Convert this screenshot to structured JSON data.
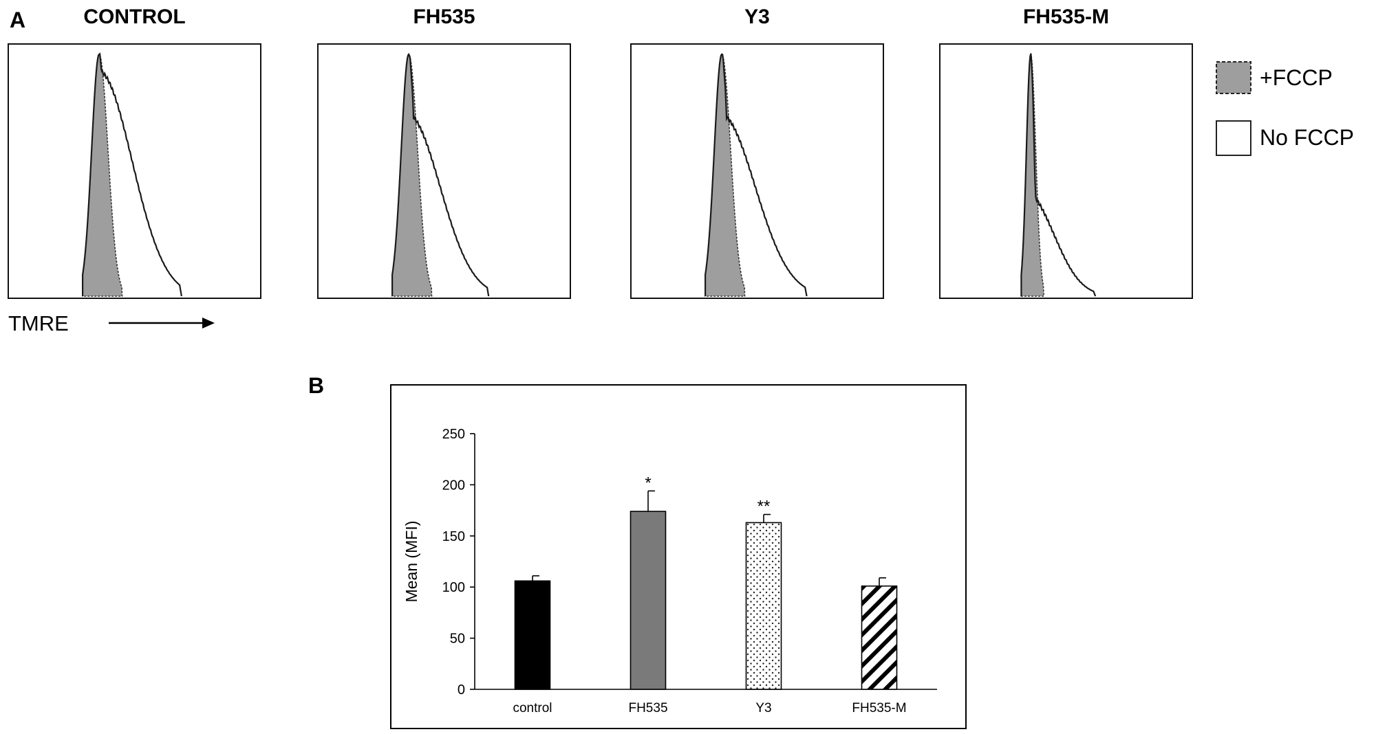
{
  "panel_a": {
    "label": "A",
    "x_axis_label": "TMRE",
    "legend": [
      {
        "label": "+FCCP",
        "style": "filled-gray-dashed"
      },
      {
        "label": "No FCCP",
        "style": "open-solid"
      }
    ],
    "colors": {
      "fccp_fill": "#9e9e9e",
      "line": "#1a1a1a"
    }
  },
  "panel_b": {
    "label": "B",
    "colors": {
      "control": "#000000",
      "FH535": "#7a7a7a",
      "Y3": "#ffffff",
      "FH535-M": "#ffffff",
      "axis": "#000000"
    }
  },
  "chart_data": [
    {
      "type": "area",
      "title": "CONTROL",
      "xlabel": "TMRE",
      "ylabel": "",
      "series": [
        {
          "name": "+FCCP",
          "peak_position": 0.36,
          "width": 0.035
        },
        {
          "name": "No FCCP",
          "peak_position": 0.36,
          "tail_end": 0.67,
          "shoulder_height": 0.92
        }
      ]
    },
    {
      "type": "area",
      "title": "FH535",
      "xlabel": "TMRE",
      "ylabel": "",
      "series": [
        {
          "name": "+FCCP",
          "peak_position": 0.36,
          "width": 0.035
        },
        {
          "name": "No FCCP",
          "peak_position": 0.36,
          "tail_end": 0.66,
          "shoulder_height": 0.72
        }
      ]
    },
    {
      "type": "area",
      "title": "Y3",
      "xlabel": "TMRE",
      "ylabel": "",
      "series": [
        {
          "name": "+FCCP",
          "peak_position": 0.36,
          "width": 0.035
        },
        {
          "name": "No FCCP",
          "peak_position": 0.36,
          "tail_end": 0.68,
          "shoulder_height": 0.72
        }
      ]
    },
    {
      "type": "area",
      "title": "FH535-M",
      "xlabel": "TMRE",
      "ylabel": "",
      "series": [
        {
          "name": "+FCCP",
          "peak_position": 0.36,
          "width": 0.02
        },
        {
          "name": "No FCCP",
          "peak_position": 0.36,
          "tail_end": 0.6,
          "shoulder_height": 0.35
        }
      ]
    },
    {
      "type": "bar",
      "title": "",
      "xlabel": "",
      "ylabel": "Mean (MFI)",
      "categories": [
        "control",
        "FH535",
        "Y3",
        "FH535-M"
      ],
      "values": [
        106,
        174,
        163,
        101
      ],
      "errors": [
        5,
        20,
        8,
        8
      ],
      "annotations": [
        "",
        "*",
        "**",
        ""
      ],
      "patterns": [
        "solid-black",
        "solid-gray",
        "dots",
        "diagonal-stripes"
      ],
      "ylim": [
        0,
        250
      ],
      "yticks": [
        0,
        50,
        100,
        150,
        200,
        250
      ],
      "grid": false
    }
  ]
}
